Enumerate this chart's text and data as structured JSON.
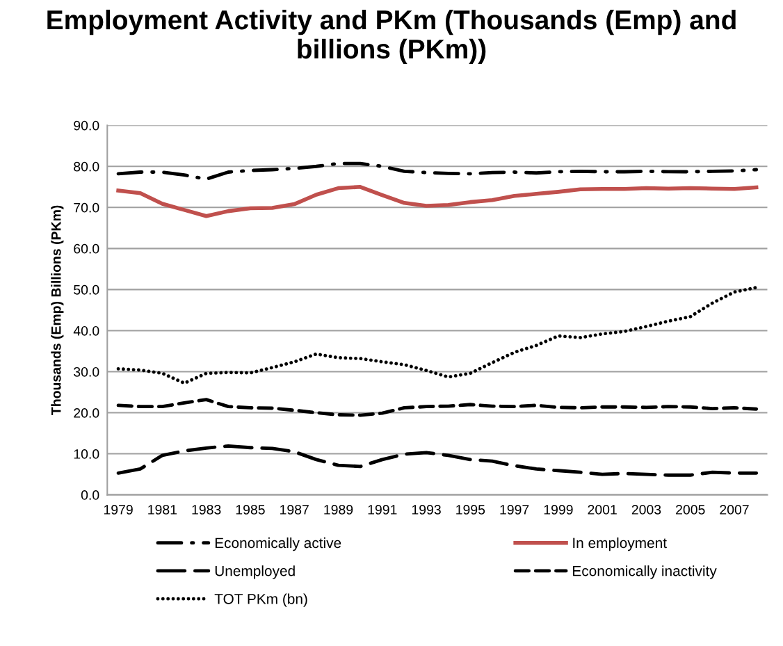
{
  "chart_data": {
    "type": "line",
    "title": "Employment Activity and PKm (Thousands (Emp) and billions (PKm))",
    "ylabel": "Thousands (Emp) Billions (PKm)",
    "categories": [
      "1979",
      null,
      "1981",
      null,
      "1983",
      null,
      "1985",
      null,
      "1987",
      null,
      "1989",
      null,
      "1991",
      null,
      "1993",
      null,
      "1995",
      null,
      "1997",
      null,
      "1999",
      null,
      "2001",
      null,
      "2003",
      null,
      "2005",
      null,
      "2007",
      null
    ],
    "series": [
      {
        "name": "Economically active",
        "color": "#000000",
        "line_style": "dashdot",
        "values": [
          78.2,
          78.6,
          78.6,
          77.9,
          76.9,
          78.6,
          79.0,
          79.2,
          79.5,
          80.0,
          80.7,
          80.7,
          80.0,
          78.8,
          78.5,
          78.3,
          78.2,
          78.5,
          78.6,
          78.4,
          78.7,
          78.8,
          78.7,
          78.7,
          78.8,
          78.7,
          78.7,
          78.8,
          78.9,
          79.2
        ]
      },
      {
        "name": "In employment",
        "color": "#c0504d",
        "line_style": "solid",
        "values": [
          74.1,
          73.5,
          70.9,
          69.4,
          67.9,
          69.1,
          69.8,
          69.9,
          70.8,
          73.1,
          74.7,
          75.0,
          73.0,
          71.1,
          70.4,
          70.6,
          71.3,
          71.8,
          72.8,
          73.3,
          73.8,
          74.4,
          74.5,
          74.5,
          74.7,
          74.6,
          74.7,
          74.6,
          74.5,
          74.9
        ]
      },
      {
        "name": "Unemployed",
        "color": "#000000",
        "line_style": "longdash",
        "values": [
          5.3,
          6.3,
          9.6,
          10.7,
          11.4,
          11.9,
          11.5,
          11.3,
          10.5,
          8.6,
          7.2,
          6.9,
          8.6,
          9.9,
          10.3,
          9.6,
          8.6,
          8.2,
          7.1,
          6.3,
          5.9,
          5.5,
          5.0,
          5.2,
          5.0,
          4.8,
          4.8,
          5.5,
          5.3,
          5.3
        ]
      },
      {
        "name": "Economically inactivity",
        "color": "#000000",
        "line_style": "dashed",
        "values": [
          21.8,
          21.5,
          21.5,
          22.4,
          23.2,
          21.5,
          21.2,
          21.1,
          20.6,
          20.0,
          19.5,
          19.4,
          19.9,
          21.2,
          21.5,
          21.6,
          22.0,
          21.6,
          21.5,
          21.8,
          21.3,
          21.2,
          21.4,
          21.4,
          21.3,
          21.5,
          21.4,
          21.0,
          21.2,
          20.9
        ]
      },
      {
        "name": "TOT PKm (bn)",
        "color": "#000000",
        "line_style": "dotted",
        "values": [
          30.7,
          30.4,
          29.6,
          27.2,
          29.6,
          29.8,
          29.7,
          31.0,
          32.4,
          34.3,
          33.4,
          33.2,
          32.4,
          31.7,
          30.3,
          28.7,
          29.6,
          32.2,
          34.7,
          36.4,
          38.7,
          38.3,
          39.2,
          39.8,
          41.0,
          42.3,
          43.4,
          46.7,
          49.4,
          50.5
        ]
      }
    ],
    "ylim": [
      0,
      90
    ],
    "yticks": [
      {
        "value": 0,
        "label": "0.0"
      },
      {
        "value": 10,
        "label": "10.0"
      },
      {
        "value": 20,
        "label": "20.0"
      },
      {
        "value": 30,
        "label": "30.0"
      },
      {
        "value": 40,
        "label": "40.0"
      },
      {
        "value": 50,
        "label": "50.0"
      },
      {
        "value": 60,
        "label": "60.0"
      },
      {
        "value": 70,
        "label": "70.0"
      },
      {
        "value": 80,
        "label": "80.0"
      },
      {
        "value": 90,
        "label": "90.0"
      }
    ],
    "grid": "y",
    "legend": "bottom"
  }
}
